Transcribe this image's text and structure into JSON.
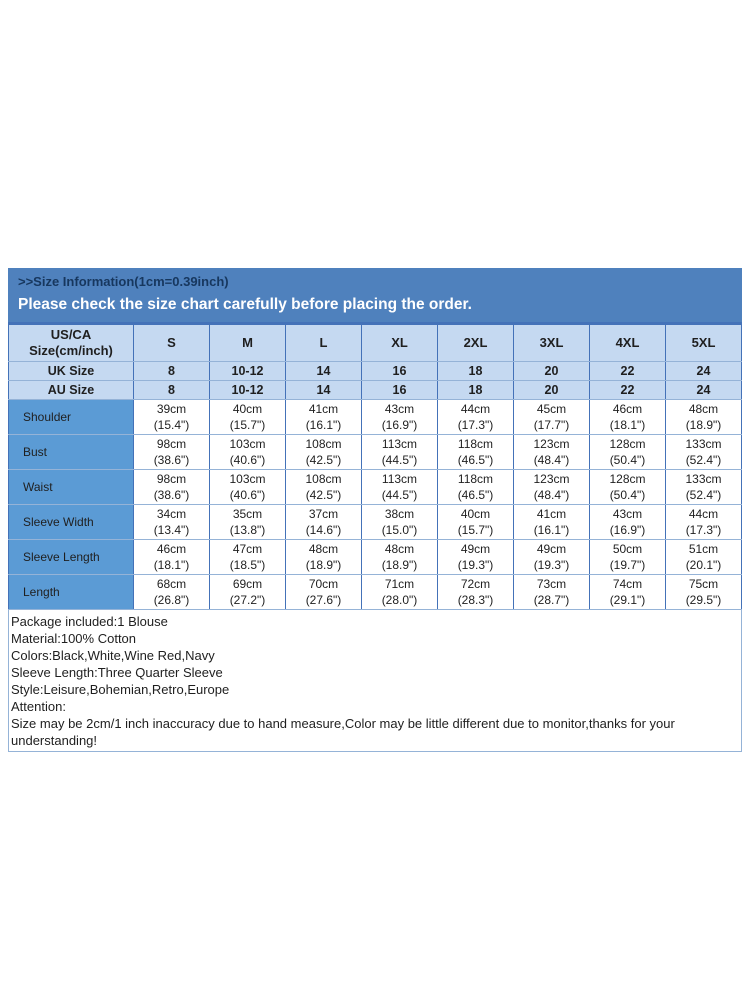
{
  "header": {
    "title": ">>Size Information(1cm=0.39inch)",
    "subtitle": "Please check the size chart carefully before placing the order."
  },
  "table": {
    "corner": {
      "line1": "US/CA",
      "line2": "Size(cm/inch)"
    },
    "size_headers": [
      "S",
      "M",
      "L",
      "XL",
      "2XL",
      "3XL",
      "4XL",
      "5XL"
    ],
    "uk_size": {
      "label": "UK Size",
      "values": [
        "8",
        "10-12",
        "14",
        "16",
        "18",
        "20",
        "22",
        "24"
      ]
    },
    "au_size": {
      "label": "AU Size",
      "values": [
        "8",
        "10-12",
        "14",
        "16",
        "18",
        "20",
        "22",
        "24"
      ]
    },
    "measurements": [
      {
        "label": "Shoulder",
        "cm": [
          "39cm",
          "40cm",
          "41cm",
          "43cm",
          "44cm",
          "45cm",
          "46cm",
          "48cm"
        ],
        "inch": [
          "(15.4\")",
          "(15.7\")",
          "(16.1\")",
          "(16.9\")",
          "(17.3\")",
          "(17.7\")",
          "(18.1\")",
          "(18.9\")"
        ]
      },
      {
        "label": "Bust",
        "cm": [
          "98cm",
          "103cm",
          "108cm",
          "113cm",
          "118cm",
          "123cm",
          "128cm",
          "133cm"
        ],
        "inch": [
          "(38.6\")",
          "(40.6\")",
          "(42.5\")",
          "(44.5\")",
          "(46.5\")",
          "(48.4\")",
          "(50.4\")",
          "(52.4\")"
        ]
      },
      {
        "label": "Waist",
        "cm": [
          "98cm",
          "103cm",
          "108cm",
          "113cm",
          "118cm",
          "123cm",
          "128cm",
          "133cm"
        ],
        "inch": [
          "(38.6\")",
          "(40.6\")",
          "(42.5\")",
          "(44.5\")",
          "(46.5\")",
          "(48.4\")",
          "(50.4\")",
          "(52.4\")"
        ]
      },
      {
        "label": "Sleeve Width",
        "cm": [
          "34cm",
          "35cm",
          "37cm",
          "38cm",
          "40cm",
          "41cm",
          "43cm",
          "44cm"
        ],
        "inch": [
          "(13.4\")",
          "(13.8\")",
          "(14.6\")",
          "(15.0\")",
          "(15.7\")",
          "(16.1\")",
          "(16.9\")",
          "(17.3\")"
        ]
      },
      {
        "label": "Sleeve Length",
        "cm": [
          "46cm",
          "47cm",
          "48cm",
          "48cm",
          "49cm",
          "49cm",
          "50cm",
          "51cm"
        ],
        "inch": [
          "(18.1\")",
          "(18.5\")",
          "(18.9\")",
          "(18.9\")",
          "(19.3\")",
          "(19.3\")",
          "(19.7\")",
          "(20.1\")"
        ]
      },
      {
        "label": "Length",
        "cm": [
          "68cm",
          "69cm",
          "70cm",
          "71cm",
          "72cm",
          "73cm",
          "74cm",
          "75cm"
        ],
        "inch": [
          "(26.8\")",
          "(27.2\")",
          "(27.6\")",
          "(28.0\")",
          "(28.3\")",
          "(28.7\")",
          "(29.1\")",
          "(29.5\")"
        ]
      }
    ]
  },
  "notes": {
    "lines": [
      "Package included:1 Blouse",
      "Material:100% Cotton",
      "Colors:Black,White,Wine Red,Navy",
      "Sleeve Length:Three Quarter Sleeve",
      "Style:Leisure,Bohemian,Retro,Europe",
      "Attention:",
      "Size may be 2cm/1 inch inaccuracy due to hand measure,Color may be little different due to monitor,thanks for your understanding!"
    ]
  },
  "colors": {
    "band_bg": "#4F81BD",
    "band_title_text": "#17375E",
    "band_subtitle_text": "#FFFFFF",
    "header_row_bg": "#C5D9F1",
    "label_cell_bg": "#5B9BD5",
    "label_text": "#17375E",
    "cell_bg": "#FFFFFF",
    "cell_text": "#1F1F1F",
    "border_light": "#95B3D7",
    "border_dark": "#4472B8",
    "page_bg": "#FFFFFF"
  }
}
